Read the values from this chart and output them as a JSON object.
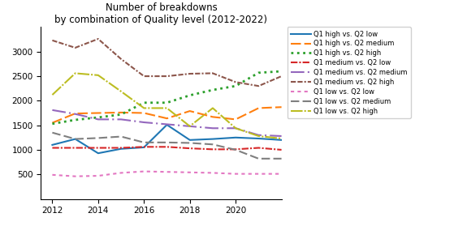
{
  "title": "Number of breakdowns\nby combination of Quality level (2012-2022)",
  "years": [
    2012,
    2013,
    2014,
    2015,
    2016,
    2017,
    2018,
    2019,
    2020,
    2021,
    2022
  ],
  "series": {
    "Q1 high vs. Q2 low": {
      "values": [
        1100,
        1220,
        930,
        1020,
        1050,
        1510,
        1200,
        1220,
        1250,
        1230,
        1200
      ],
      "color": "#1f77b4",
      "linestyle": "-",
      "dashes": null,
      "linewidth": 1.5
    },
    "Q1 high vs. Q2 medium": {
      "values": [
        1550,
        1740,
        1750,
        1760,
        1750,
        1640,
        1790,
        1670,
        1620,
        1850,
        1870
      ],
      "color": "#ff7f0e",
      "linestyle": "--",
      "dashes": [
        6,
        2
      ],
      "linewidth": 1.5
    },
    "Q1 high vs. Q2 high": {
      "values": [
        1530,
        1610,
        1660,
        1720,
        1960,
        1960,
        2110,
        2220,
        2300,
        2570,
        2600
      ],
      "color": "#2ca02c",
      "linestyle": ":",
      "dashes": null,
      "linewidth": 2.0
    },
    "Q1 medium vs. Q2 low": {
      "values": [
        1040,
        1040,
        1040,
        1040,
        1060,
        1060,
        1030,
        1010,
        1010,
        1040,
        1000
      ],
      "color": "#d62728",
      "linestyle": "-.",
      "dashes": [
        4,
        1,
        1,
        1
      ],
      "linewidth": 1.5
    },
    "Q1 medium vs. Q2 medium": {
      "values": [
        1810,
        1730,
        1620,
        1620,
        1560,
        1520,
        1480,
        1440,
        1440,
        1300,
        1280
      ],
      "color": "#9467bd",
      "linestyle": "-.",
      "dashes": [
        8,
        2,
        1,
        2
      ],
      "linewidth": 1.5
    },
    "Q1 medium vs. Q2 high": {
      "values": [
        3230,
        3080,
        3260,
        2850,
        2500,
        2500,
        2550,
        2560,
        2380,
        2300,
        2500
      ],
      "color": "#8c564b",
      "linestyle": "-.",
      "dashes": [
        3,
        1,
        3,
        1,
        1,
        1
      ],
      "linewidth": 1.5
    },
    "Q1 low vs. Q2 low": {
      "values": [
        490,
        460,
        470,
        530,
        560,
        550,
        540,
        530,
        510,
        510,
        510
      ],
      "color": "#e377c2",
      "linestyle": "--",
      "dashes": [
        2,
        2
      ],
      "linewidth": 1.5
    },
    "Q1 low vs. Q2 medium": {
      "values": [
        1350,
        1220,
        1240,
        1270,
        1150,
        1150,
        1140,
        1110,
        1000,
        820,
        820
      ],
      "color": "#7f7f7f",
      "linestyle": "-.",
      "dashes": [
        5,
        2,
        5,
        2
      ],
      "linewidth": 1.5
    },
    "Q1 low vs. Q2 high": {
      "values": [
        2120,
        2560,
        2520,
        2190,
        1850,
        1850,
        1480,
        1850,
        1440,
        1280,
        1230
      ],
      "color": "#bcbd22",
      "linestyle": "-.",
      "dashes": [
        7,
        1,
        1,
        1
      ],
      "linewidth": 1.5
    }
  },
  "xlim": [
    2011.5,
    2022.0
  ],
  "ylim": [
    0,
    3500
  ],
  "yticks": [
    500,
    1000,
    1500,
    2000,
    2500,
    3000
  ],
  "xticks": [
    2012,
    2014,
    2016,
    2018,
    2020
  ],
  "figsize": [
    5.59,
    2.79
  ],
  "dpi": 100,
  "title_fontsize": 8.5,
  "tick_labelsize": 7.5,
  "legend_fontsize": 6.0
}
